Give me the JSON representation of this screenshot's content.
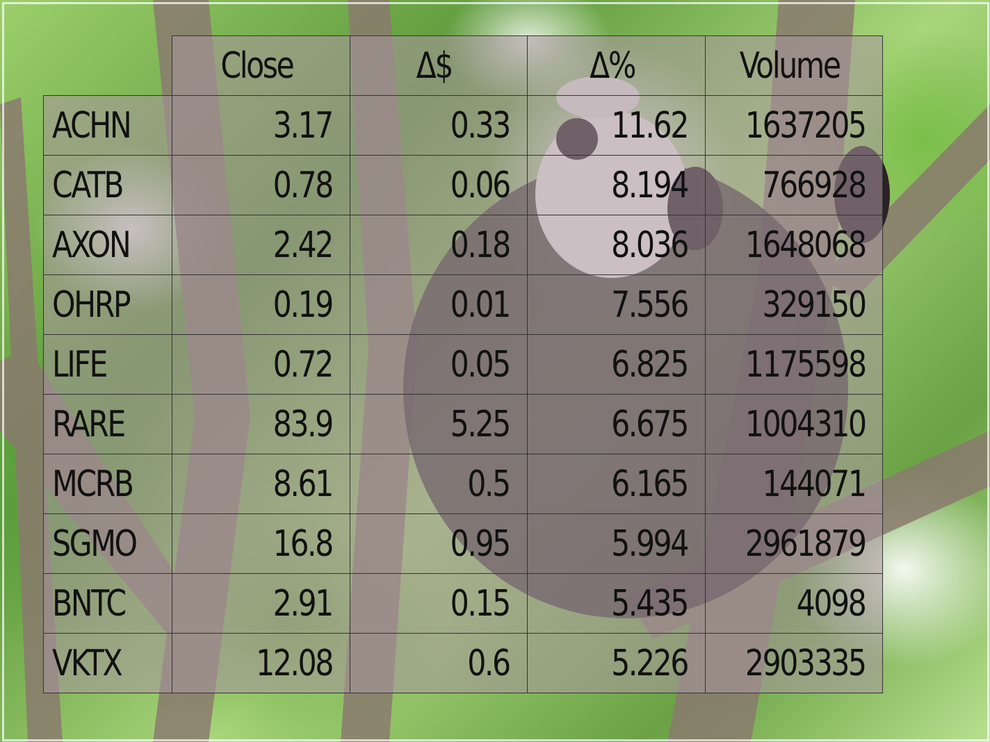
{
  "chart_data": {
    "type": "table",
    "columns": [
      "Close",
      "Δ$",
      "Δ%",
      "Volume"
    ],
    "rows": [
      {
        "ticker": "ACHN",
        "close": "3.17",
        "delta_dollar": "0.33",
        "delta_pct": "11.62",
        "volume": "1637205"
      },
      {
        "ticker": "CATB",
        "close": "0.78",
        "delta_dollar": "0.06",
        "delta_pct": "8.194",
        "volume": "766928"
      },
      {
        "ticker": "AXON",
        "close": "2.42",
        "delta_dollar": "0.18",
        "delta_pct": "8.036",
        "volume": "1648068"
      },
      {
        "ticker": "OHRP",
        "close": "0.19",
        "delta_dollar": "0.01",
        "delta_pct": "7.556",
        "volume": "329150"
      },
      {
        "ticker": "LIFE",
        "close": "0.72",
        "delta_dollar": "0.05",
        "delta_pct": "6.825",
        "volume": "1175598"
      },
      {
        "ticker": "RARE",
        "close": "83.9",
        "delta_dollar": "5.25",
        "delta_pct": "6.675",
        "volume": "1004310"
      },
      {
        "ticker": "MCRB",
        "close": "8.61",
        "delta_dollar": "0.5",
        "delta_pct": "6.165",
        "volume": "144071"
      },
      {
        "ticker": "SGMO",
        "close": "16.8",
        "delta_dollar": "0.95",
        "delta_pct": "5.994",
        "volume": "2961879"
      },
      {
        "ticker": "BNTC",
        "close": "2.91",
        "delta_dollar": "0.15",
        "delta_pct": "5.435",
        "volume": "4098"
      },
      {
        "ticker": "VKTX",
        "close": "12.08",
        "delta_dollar": "0.6",
        "delta_pct": "5.226",
        "volume": "2903335"
      }
    ]
  },
  "colors": {
    "cell_overlay": "#aa96a0",
    "text": "#111111",
    "foliage": "#6aa245"
  },
  "background": {
    "icon": "panda-in-tree-photo"
  }
}
